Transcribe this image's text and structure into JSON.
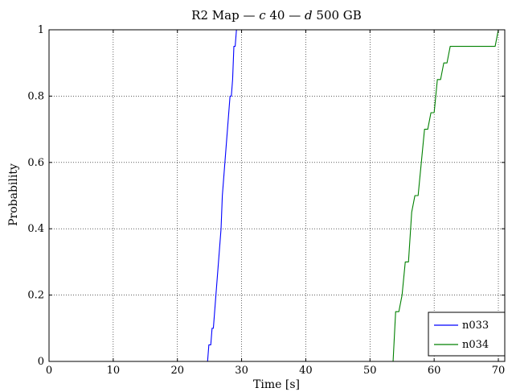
{
  "chart_data": {
    "type": "line",
    "title": "R2 Map — c 40 — d 500 GB",
    "title_parts": {
      "prefix": "R2 Map — ",
      "c_symbol": "c",
      "c_value": " 40 — ",
      "d_symbol": "d",
      "d_value": " 500 GB"
    },
    "xlabel": "Time [s]",
    "ylabel": "Probability",
    "xlim": [
      0,
      71
    ],
    "ylim": [
      0,
      1
    ],
    "xticks": [
      0,
      10,
      20,
      30,
      40,
      50,
      60,
      70
    ],
    "yticks": [
      0,
      0.2,
      0.4,
      0.6,
      0.8,
      1
    ],
    "ytick_labels": [
      "0",
      "0.2",
      "0.4",
      "0.6",
      "0.8",
      "1"
    ],
    "grid": true,
    "legend_position": "bottom-right",
    "series": [
      {
        "name": "n033",
        "color": "#0000ff",
        "x": [
          0,
          24.7,
          24.9,
          25.2,
          25.4,
          25.6,
          25.8,
          26.0,
          26.2,
          26.4,
          26.6,
          26.8,
          27.0,
          27.2,
          27.4,
          27.6,
          27.8,
          28.0,
          28.2,
          28.4,
          28.6,
          28.8,
          29.0,
          29.2,
          29.4,
          29.6,
          29.8,
          30.0
        ],
        "y": [
          0,
          0,
          0.05,
          0.05,
          0.1,
          0.1,
          0.15,
          0.2,
          0.25,
          0.3,
          0.35,
          0.4,
          0.5,
          0.55,
          0.6,
          0.65,
          0.7,
          0.75,
          0.8,
          0.8,
          0.85,
          0.95,
          0.95,
          1.0,
          1.0,
          1.0,
          1.0,
          1.0
        ]
      },
      {
        "name": "n034",
        "color": "#008000",
        "x": [
          0,
          53.6,
          54.0,
          54.5,
          55.0,
          55.5,
          56.0,
          56.5,
          57.0,
          57.5,
          58.0,
          58.5,
          59.0,
          59.5,
          60.0,
          60.5,
          61.0,
          61.5,
          62.0,
          62.5,
          63.0,
          63.5,
          64.0,
          64.5,
          65.0,
          65.5,
          69.5,
          70.0,
          71.0
        ],
        "y": [
          0,
          0,
          0.15,
          0.15,
          0.2,
          0.3,
          0.3,
          0.45,
          0.5,
          0.5,
          0.6,
          0.7,
          0.7,
          0.75,
          0.75,
          0.85,
          0.85,
          0.9,
          0.9,
          0.95,
          0.95,
          0.95,
          0.95,
          0.95,
          0.95,
          0.95,
          0.95,
          1.0,
          1.0
        ]
      }
    ]
  }
}
